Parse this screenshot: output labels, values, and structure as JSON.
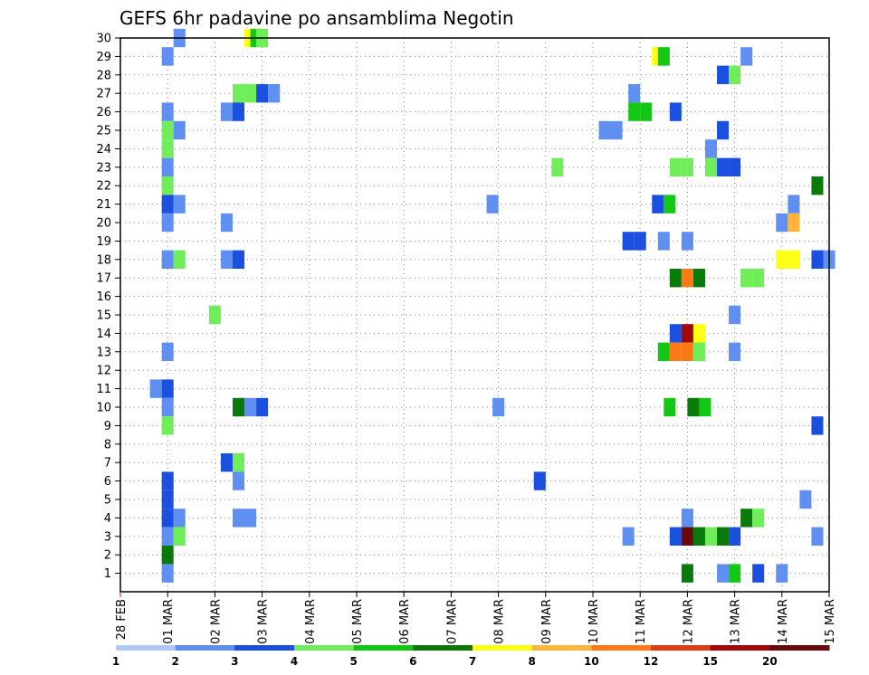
{
  "chart_data": {
    "type": "heatmap",
    "title": "GEFS 6hr padavine po ansamblima Negotin",
    "xlabel": "",
    "ylabel": "",
    "x_tick_labels": [
      "28 FEB",
      "01 MAR",
      "02 MAR",
      "03 MAR",
      "04 MAR",
      "05 MAR",
      "06 MAR",
      "07 MAR",
      "08 MAR",
      "09 MAR",
      "10 MAR",
      "11 MAR",
      "12 MAR",
      "13 MAR",
      "14 MAR",
      "15 MAR"
    ],
    "x_range_days": [
      0,
      15
    ],
    "y_tick_labels": [
      "1",
      "2",
      "3",
      "4",
      "5",
      "6",
      "7",
      "8",
      "9",
      "10",
      "11",
      "12",
      "13",
      "14",
      "15",
      "16",
      "17",
      "18",
      "19",
      "20",
      "21",
      "22",
      "23",
      "24",
      "25",
      "26",
      "27",
      "28",
      "29",
      "30"
    ],
    "y_range": [
      0,
      30
    ],
    "grid": true,
    "colorbar": {
      "labels": [
        "1",
        "2",
        "3",
        "4",
        "5",
        "6",
        "7",
        "8",
        "10",
        "12",
        "15",
        "20"
      ],
      "colors": [
        "#b0c8f4",
        "#5f8ff0",
        "#1b4fe0",
        "#6fee5a",
        "#12c814",
        "#0a7a0a",
        "#ffff14",
        "#ffb43c",
        "#ff7a14",
        "#e03c14",
        "#a00a0a",
        "#6a0a0a"
      ]
    },
    "cells": [
      [
        1.25,
        30,
        1
      ],
      [
        2.75,
        30,
        6
      ],
      [
        2.875,
        30,
        4
      ],
      [
        3.0,
        30,
        3
      ],
      [
        1.0,
        29,
        1
      ],
      [
        11.375,
        29,
        6
      ],
      [
        11.5,
        29,
        4
      ],
      [
        13.25,
        29,
        1
      ],
      [
        12.75,
        28,
        2
      ],
      [
        13.0,
        28,
        3
      ],
      [
        2.5,
        27,
        3
      ],
      [
        2.75,
        27,
        3
      ],
      [
        3.0,
        27,
        2
      ],
      [
        3.25,
        27,
        1
      ],
      [
        10.875,
        27,
        1
      ],
      [
        1.0,
        26,
        1
      ],
      [
        2.25,
        26,
        1
      ],
      [
        2.5,
        26,
        2
      ],
      [
        10.875,
        26,
        4
      ],
      [
        11.125,
        26,
        4
      ],
      [
        11.75,
        26,
        2
      ],
      [
        1.0,
        25,
        3
      ],
      [
        1.25,
        25,
        1
      ],
      [
        10.25,
        25,
        1
      ],
      [
        10.5,
        25,
        1
      ],
      [
        12.75,
        25,
        2
      ],
      [
        1.0,
        24,
        3
      ],
      [
        12.5,
        24,
        1
      ],
      [
        1.0,
        23,
        1
      ],
      [
        9.25,
        23,
        3
      ],
      [
        11.75,
        23,
        3
      ],
      [
        12.0,
        23,
        3
      ],
      [
        12.5,
        23,
        3
      ],
      [
        12.75,
        23,
        2
      ],
      [
        13.0,
        23,
        2
      ],
      [
        1.0,
        22,
        3
      ],
      [
        14.75,
        22,
        5
      ],
      [
        1.0,
        21,
        2
      ],
      [
        1.25,
        21,
        1
      ],
      [
        7.875,
        21,
        1
      ],
      [
        11.375,
        21,
        2
      ],
      [
        11.625,
        21,
        4
      ],
      [
        14.25,
        21,
        1
      ],
      [
        1.0,
        20,
        1
      ],
      [
        2.25,
        20,
        1
      ],
      [
        14.0,
        20,
        1
      ],
      [
        14.25,
        20,
        7
      ],
      [
        10.75,
        19,
        2
      ],
      [
        11.0,
        19,
        2
      ],
      [
        11.5,
        19,
        1
      ],
      [
        12.0,
        19,
        1
      ],
      [
        1.0,
        18,
        1
      ],
      [
        1.25,
        18,
        3
      ],
      [
        2.25,
        18,
        1
      ],
      [
        2.5,
        18,
        2
      ],
      [
        14.0,
        18,
        6
      ],
      [
        14.25,
        18,
        6
      ],
      [
        14.75,
        18,
        2
      ],
      [
        15.0,
        18,
        1
      ],
      [
        11.75,
        17,
        5
      ],
      [
        12.0,
        17,
        8
      ],
      [
        12.25,
        17,
        5
      ],
      [
        13.25,
        17,
        3
      ],
      [
        13.5,
        17,
        3
      ],
      [
        2.0,
        15,
        3
      ],
      [
        13.0,
        15,
        1
      ],
      [
        11.75,
        14,
        2
      ],
      [
        12.0,
        14,
        10
      ],
      [
        12.25,
        14,
        6
      ],
      [
        1.0,
        13,
        1
      ],
      [
        11.5,
        13,
        4
      ],
      [
        11.75,
        13,
        8
      ],
      [
        12.0,
        13,
        8
      ],
      [
        12.25,
        13,
        3
      ],
      [
        13.0,
        13,
        1
      ],
      [
        0.75,
        11,
        1
      ],
      [
        1.0,
        11,
        2
      ],
      [
        1.0,
        10,
        1
      ],
      [
        2.5,
        10,
        5
      ],
      [
        2.75,
        10,
        1
      ],
      [
        3.0,
        10,
        2
      ],
      [
        8.0,
        10,
        1
      ],
      [
        11.625,
        10,
        4
      ],
      [
        12.125,
        10,
        5
      ],
      [
        12.375,
        10,
        4
      ],
      [
        1.0,
        9,
        3
      ],
      [
        14.75,
        9,
        2
      ],
      [
        2.25,
        7,
        2
      ],
      [
        2.5,
        7,
        3
      ],
      [
        1.0,
        6,
        2
      ],
      [
        2.5,
        6,
        1
      ],
      [
        8.875,
        6,
        2
      ],
      [
        1.0,
        5,
        2
      ],
      [
        14.5,
        5,
        1
      ],
      [
        1.0,
        4,
        2
      ],
      [
        1.25,
        4,
        1
      ],
      [
        2.5,
        4,
        1
      ],
      [
        2.75,
        4,
        1
      ],
      [
        12.0,
        4,
        1
      ],
      [
        13.25,
        4,
        5
      ],
      [
        13.5,
        4,
        3
      ],
      [
        1.0,
        3,
        1
      ],
      [
        1.25,
        3,
        3
      ],
      [
        10.75,
        3,
        1
      ],
      [
        11.75,
        3,
        2
      ],
      [
        12.0,
        3,
        11
      ],
      [
        12.25,
        3,
        5
      ],
      [
        12.5,
        3,
        3
      ],
      [
        12.75,
        3,
        5
      ],
      [
        13.0,
        3,
        2
      ],
      [
        14.75,
        3,
        1
      ],
      [
        1.0,
        2,
        5
      ],
      [
        1.0,
        1,
        1
      ],
      [
        12.0,
        1,
        5
      ],
      [
        12.75,
        1,
        1
      ],
      [
        13.0,
        1,
        4
      ],
      [
        13.5,
        1,
        2
      ],
      [
        14.0,
        1,
        1
      ]
    ]
  }
}
